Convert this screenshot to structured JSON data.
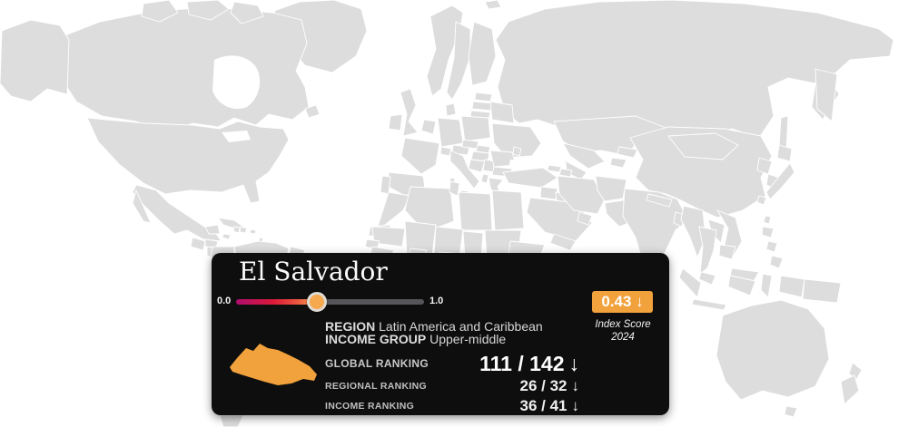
{
  "tooltip": {
    "country_name": "El Salvador",
    "slider": {
      "min_label": "0.0",
      "max_label": "1.0",
      "value": 0.43,
      "gradient_stops": [
        [
          "#B00D6E",
          "0%"
        ],
        [
          "#DC1A3A",
          "20%"
        ],
        [
          "#EC5940",
          "33%"
        ],
        [
          "#F6A351",
          "42%"
        ],
        [
          "#55555A",
          "43%"
        ],
        [
          "#55555A",
          "100%"
        ]
      ],
      "handle_color": "#F6A94E"
    },
    "score": {
      "badge_text": "0.43 ↓",
      "badge_color": "#F2A23C",
      "caption_line1": "Index Score",
      "caption_line2": "2024"
    },
    "region": {
      "label": "REGION",
      "value": "Latin America and Caribbean"
    },
    "income_group": {
      "label": "INCOME GROUP",
      "value": "Upper-middle"
    },
    "rankings": [
      {
        "label": "GLOBAL RANKING",
        "value": "111 / 142",
        "arrow": "↓"
      },
      {
        "label": "REGIONAL RANKING",
        "value": "26 / 32",
        "arrow": "↓"
      },
      {
        "label": "INCOME RANKING",
        "value": "36 / 41",
        "arrow": "↓"
      }
    ],
    "country_shape_color": "#F2A23C"
  },
  "map": {
    "ocean_color": "#FFFFFF",
    "border_color": "#FFFFFF",
    "no_data_color": "#E9E9E9",
    "countries": {
      "greenland": "#ECECEC",
      "svalbard": "#ECECEC",
      "canada": "#4D8C7B",
      "alaska": "#A9BE90",
      "usa": "#A9BE90",
      "mexico": "#F2973B",
      "guatemala": "#F0953C",
      "honduras": "#F0953C",
      "nicaragua": "#E25B44",
      "costa-rica": "#5E9678",
      "cuba": "#E4E4E2",
      "jamaica": "#EFC746",
      "haiti": "#E04238",
      "dominican-republic": "#F0953C",
      "puerto-rico": "#F0953C",
      "lesser-antilles": "#E04238",
      "venezuela": "#E04B38",
      "colombia": "#F0983A",
      "guyana": "#ED7A4C",
      "peru-bolivia": "#E9C23E",
      "norway": "#1E5B68",
      "sweden": "#27646D",
      "finland": "#1E5F69",
      "estonia": "#4D8C7B",
      "latvia": "#74A184",
      "lithuania": "#9CB26F",
      "denmark": "#1E5B68",
      "united-kingdom": "#5E9378",
      "ireland": "#6FA082",
      "benelux": "#4F8C77",
      "germany": "#2E7370",
      "poland": "#B5C083",
      "belarus": "#F0A344",
      "ukraine": "#EEC746",
      "france": "#79A286",
      "spain": "#74A584",
      "portugal": "#5E9378",
      "italy": "#ABBC89",
      "switzerland": "#6F9E80",
      "austria": "#84AB85",
      "czechia": "#7FA883",
      "slovakia": "#84AB85",
      "hungary": "#BDBF6F",
      "croatia-bosnia": "#AEB575",
      "serbia": "#C0BC68",
      "albania": "#F0A344",
      "greece": "#B3B771",
      "bulgaria": "#C5C162",
      "romania": "#E9C64E",
      "moldova": "#F0A344",
      "russia": "#F2A444",
      "turkey": "#F0973F",
      "georgia": "#6FA082",
      "azerbaijan": "#F0A344",
      "syria": "#E7E7E5",
      "iraq": "#F0953C",
      "saudi-arabia": "#E9E9E9",
      "uae-oman": "#A9BD5F",
      "yemen": "#F0953C",
      "iran": "#EF8E4A",
      "afghanistan": "#EB6B44",
      "pakistan": "#F0A04C",
      "kazakhstan": "#ECC94E",
      "uzbekistan": "#F0A344",
      "turkmenistan": "#E7E7E5",
      "kyrgyzstan": "#F0A344",
      "tajikistan": "#E7E7E5",
      "morocco": "#EEC443",
      "western-sahara": "#E7E7E5",
      "algeria": "#EEC443",
      "tunisia": "#EEC443",
      "libya": "#E9E9E9",
      "egypt": "#EE8448",
      "mauritania": "#F09A48",
      "senegal": "#C9C050",
      "mali": "#F09A48",
      "niger": "#F09A48",
      "chad": "#F09A48",
      "sudan": "#EE8448",
      "guinea": "#F09A48",
      "burkina-faso": "#D4C14F",
      "nigeria": "#F09A48",
      "ethiopia": "#F0953C",
      "india": "#EFC345",
      "nepal": "#C8BF5C",
      "bangladesh": "#EFC345",
      "china": "#F0B83E",
      "mongolia": "#D9C05C",
      "north-korea": "#E7E7E5",
      "south-korea": "#5A9678",
      "japan": "#3F8A6C",
      "taiwan": "#E7E7E5",
      "myanmar": "#EC7A4C",
      "thailand": "#EFC94A",
      "laos": "#F0A344",
      "vietnam": "#EEB544",
      "cambodia": "#E85A4B",
      "malaysia": "#C6BC5F",
      "indonesia": "#E9C23E",
      "papua-new-guinea": "#E9E9E9",
      "philippines": "#EF9040",
      "australia": "#4E8F7E",
      "new-zealand": "#1D6B5F"
    }
  }
}
